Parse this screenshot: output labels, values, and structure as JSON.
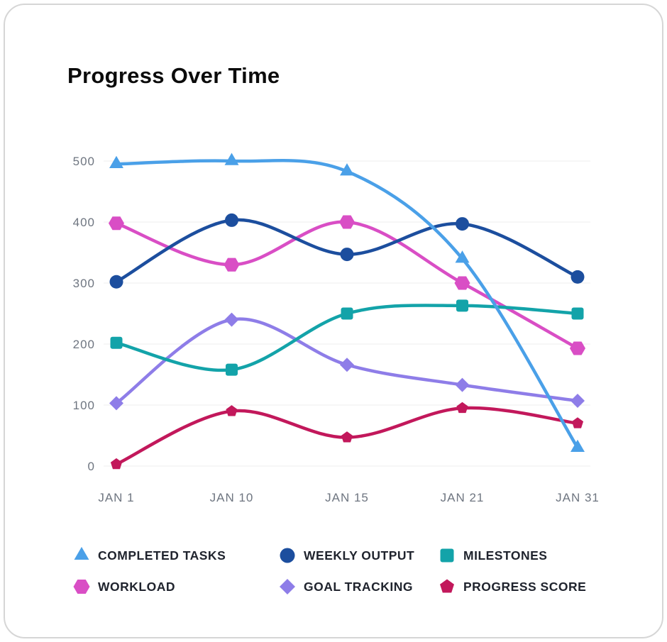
{
  "card": {
    "title": "Progress Over Time"
  },
  "chart_data": {
    "type": "line",
    "title": "Progress Over Time",
    "categories": [
      "JAN 1",
      "JAN 10",
      "JAN 15",
      "JAN 21",
      "JAN 31"
    ],
    "y_ticks": [
      0,
      100,
      200,
      300,
      400,
      500
    ],
    "ylim": [
      0,
      500
    ],
    "grid": "horizontal",
    "legend_position": "bottom",
    "axis_label_color": "#6E7580",
    "grid_color": "#ededed",
    "series": [
      {
        "name": "COMPLETED TASKS",
        "marker": "triangle",
        "color": "#4AA0E8",
        "values": [
          495,
          500,
          483,
          340,
          30
        ]
      },
      {
        "name": "WEEKLY OUTPUT",
        "marker": "circle",
        "color": "#1C4E9E",
        "values": [
          302,
          403,
          347,
          397,
          310
        ]
      },
      {
        "name": "MILESTONES",
        "marker": "square",
        "color": "#13A3A9",
        "values": [
          202,
          158,
          250,
          263,
          250
        ]
      },
      {
        "name": "WORKLOAD",
        "marker": "hexagon",
        "color": "#D94EC5",
        "values": [
          398,
          330,
          400,
          300,
          193
        ]
      },
      {
        "name": "GOAL TRACKING",
        "marker": "diamond",
        "color": "#8E7DE8",
        "values": [
          103,
          240,
          166,
          133,
          107
        ]
      },
      {
        "name": "PROGRESS SCORE",
        "marker": "pentagon",
        "color": "#C2185B",
        "values": [
          3,
          90,
          47,
          95,
          70
        ]
      }
    ]
  }
}
